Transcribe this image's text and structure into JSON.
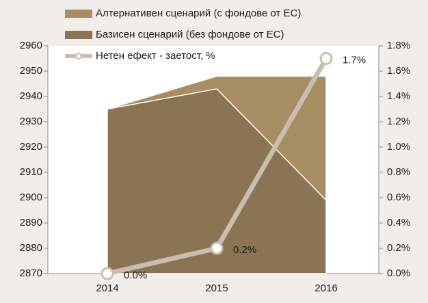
{
  "chart_data": {
    "type": "combo",
    "categories": [
      "2014",
      "2015",
      "2016"
    ],
    "series": [
      {
        "name": "Алтернативен сценарий (с фондове от ЕС)",
        "type": "area",
        "color": "#a88c62",
        "values": [
          2935,
          2948,
          2948
        ]
      },
      {
        "name": "Базисен сценарий (без фондове от ЕС)",
        "type": "area",
        "color": "#8a7452",
        "values": [
          2935,
          2943,
          2899
        ]
      },
      {
        "name": "Нетен ефект - заетост, %",
        "type": "line",
        "axis": "y2",
        "color": "#c9beb1",
        "values": [
          0.0,
          0.2,
          1.7
        ],
        "value_labels": [
          "0.0%",
          "0.2%",
          "1.7%"
        ]
      }
    ],
    "ylim": [
      2870,
      2960
    ],
    "yticks": [
      2870,
      2880,
      2890,
      2900,
      2910,
      2920,
      2930,
      2940,
      2950,
      2960
    ],
    "y2lim": [
      0,
      1.8
    ],
    "y2ticks": [
      {
        "value": 0,
        "label": "0.0%"
      },
      {
        "value": 0.2,
        "label": "0.2%"
      },
      {
        "value": 0.4,
        "label": "0.4%"
      },
      {
        "value": 0.6,
        "label": "0.6%"
      },
      {
        "value": 0.8,
        "label": "0.8%"
      },
      {
        "value": 1.0,
        "label": "1.0%"
      },
      {
        "value": 1.2,
        "label": "1.2%"
      },
      {
        "value": 1.4,
        "label": "1.4%"
      },
      {
        "value": 1.6,
        "label": "1.6%"
      },
      {
        "value": 1.8,
        "label": "1.8%"
      }
    ],
    "legend": "top"
  }
}
